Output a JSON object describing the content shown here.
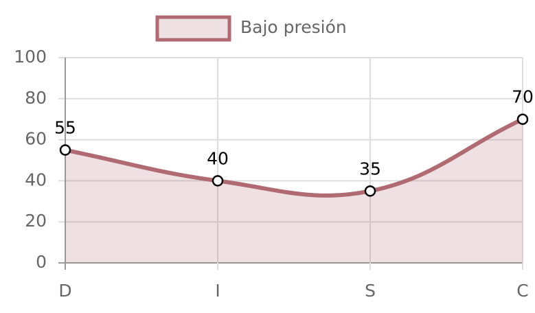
{
  "chart_data": {
    "type": "line",
    "categories": [
      "D",
      "I",
      "S",
      "C"
    ],
    "series": [
      {
        "name": "Bajo presión",
        "color": "#b06a72",
        "fill": "rgba(176,106,114,0.2)",
        "values": [
          55,
          40,
          35,
          70
        ]
      }
    ],
    "ylim": [
      0,
      100
    ],
    "yticks": [
      0,
      20,
      40,
      60,
      80,
      100
    ],
    "grid": true,
    "data_labels": true,
    "legend": "top"
  }
}
